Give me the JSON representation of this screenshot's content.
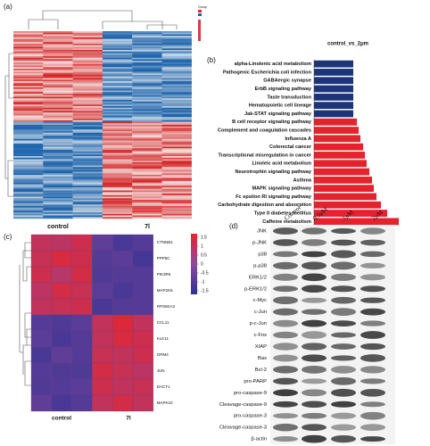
{
  "panel_a": {
    "label": "(a)",
    "legend_title": "Group",
    "groups": [
      "control",
      "7l"
    ]
  },
  "panel_b": {
    "label": "(b)",
    "title": "control_vs_2μm",
    "pathways": [
      {
        "name": "alpha-Linolenic acid metabolism",
        "value": 2.2,
        "color": "#1c3578"
      },
      {
        "name": "Pathogenic Escherichia coli infection",
        "value": 2.2,
        "color": "#1c3578"
      },
      {
        "name": "GABAergic synapse",
        "value": 2.2,
        "color": "#1c3578"
      },
      {
        "name": "ErbB signaling pathway",
        "value": 2.2,
        "color": "#1c3578"
      },
      {
        "name": "Taste transduction",
        "value": 2.2,
        "color": "#1c3578"
      },
      {
        "name": "Hematopoietic cell lineage",
        "value": 2.2,
        "color": "#1c3578"
      },
      {
        "name": "Jak-STAT signaling pathway",
        "value": 2.2,
        "color": "#1c3578"
      },
      {
        "name": "B cell receptor signaling pathway",
        "value": 2.4,
        "color": "#e4232d"
      },
      {
        "name": "Complement and coagulation cascades",
        "value": 2.5,
        "color": "#e4232d"
      },
      {
        "name": "Influenza A",
        "value": 2.6,
        "color": "#e4232d"
      },
      {
        "name": "Colorectal cancer",
        "value": 2.75,
        "color": "#e4232d"
      },
      {
        "name": "Transcriptional misregulation in cancer",
        "value": 2.85,
        "color": "#e4232d"
      },
      {
        "name": "Linoleic acid metabolism",
        "value": 2.95,
        "color": "#e4232d"
      },
      {
        "name": "Neurotrophin signaling pathway",
        "value": 3.1,
        "color": "#e4232d"
      },
      {
        "name": "Asthma",
        "value": 3.25,
        "color": "#e4232d"
      },
      {
        "name": "MAPK signaling pathway",
        "value": 3.35,
        "color": "#e4232d"
      },
      {
        "name": "Fc epsilon RI signaling pathway",
        "value": 3.5,
        "color": "#e4232d"
      },
      {
        "name": "Carbohydrate digestion and absorption",
        "value": 3.75,
        "color": "#e4232d"
      },
      {
        "name": "Type II diabetes mellitus",
        "value": 4.1,
        "color": "#e4232d"
      },
      {
        "name": "Caffeine metabolism",
        "value": 4.75,
        "color": "#e4232d"
      }
    ]
  },
  "panel_c": {
    "label": "(c)",
    "groups": [
      "control",
      "7l"
    ],
    "genes": [
      "CTNNB1",
      "PPP5C",
      "PIK3R5",
      "MAP2K5",
      "RPS6KA3",
      "CCL11",
      "KLK11",
      "GRM4",
      "JUN",
      "DACT1",
      "MAPK10"
    ],
    "values": [
      [
        1.0,
        0.9,
        1.2,
        -0.8,
        -1.2,
        -1.0
      ],
      [
        1.1,
        1.4,
        1.2,
        -1.0,
        -0.9,
        -1.3
      ],
      [
        1.2,
        0.8,
        1.3,
        -1.1,
        -1.0,
        -1.0
      ],
      [
        0.9,
        1.3,
        1.1,
        -0.9,
        -1.2,
        -1.0
      ],
      [
        1.0,
        1.1,
        1.2,
        -1.2,
        -1.0,
        -1.0
      ],
      [
        -1.0,
        -1.1,
        -0.9,
        1.0,
        1.5,
        1.0
      ],
      [
        -0.9,
        -1.2,
        -1.0,
        1.0,
        1.4,
        1.2
      ],
      [
        -1.2,
        -0.8,
        -1.0,
        1.1,
        1.0,
        1.2
      ],
      [
        -1.0,
        -1.1,
        -1.1,
        1.3,
        1.1,
        0.9
      ],
      [
        -1.1,
        -1.0,
        -0.9,
        1.2,
        1.0,
        1.1
      ],
      [
        -0.8,
        -1.2,
        -1.0,
        1.0,
        1.3,
        1.0
      ]
    ],
    "colorbar_lim": [
      -1.7,
      1.7
    ],
    "colorbar_ticks": [
      1.5,
      1,
      0.5,
      0,
      -0.5,
      -1,
      -1.5
    ]
  },
  "panel_d": {
    "label": "(d)",
    "conditions": [
      "Control",
      "0.5μM",
      "1μM",
      "2μM"
    ],
    "proteins": [
      "JNK",
      "p-JNK",
      "p38",
      "p-p38",
      "ERK1/2",
      "p-ERK1/2",
      "c-Myc",
      "c-Jun",
      "p-c-Jun",
      "c-Fos",
      "XIAP",
      "Bax",
      "Bcl-2",
      "pro-PARP",
      "pro-caspase-9",
      "Cleavage-caspase-9",
      "pro-caspase-3",
      "Cleavage-caspase-3",
      "β-actin"
    ]
  }
}
